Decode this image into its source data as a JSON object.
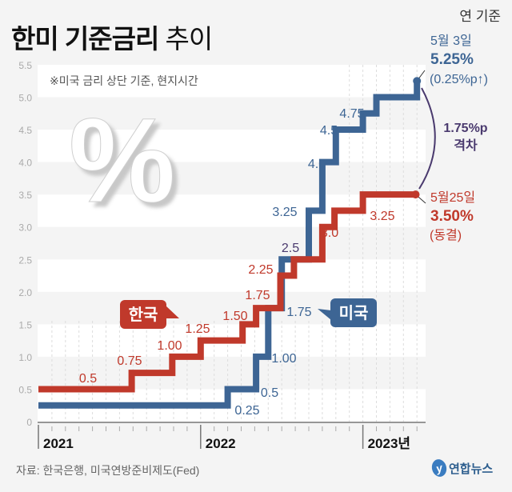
{
  "header": {
    "title_bold": "한미 기준금리",
    "title_light": "추이",
    "unit": "연 기준"
  },
  "footer": {
    "source": "자료: 한국은행, 미국연방준비제도(Fed)",
    "logo": "연합뉴스"
  },
  "colors": {
    "korea": "#c0392b",
    "us": "#3d6594",
    "gap": "#4a3a6e",
    "background": "#f4f4f4"
  },
  "chart_data": {
    "type": "line",
    "step": true,
    "title": "한미 기준금리 추이",
    "note": "※미국 금리 상단 기준, 현지시간",
    "ylabel": "연 기준 (%)",
    "ylim": [
      0,
      5.5
    ],
    "yticks": [
      "0",
      "0.5",
      "1.0",
      "1.5",
      "2.0",
      "2.5",
      "3.0",
      "3.5",
      "4.0",
      "4.5",
      "5.0",
      "5.5"
    ],
    "x_unit": "months since Jan 2021",
    "xlim": [
      0,
      28.7
    ],
    "xticks": [
      {
        "m": 0,
        "label": "2021"
      },
      {
        "m": 12,
        "label": "2022"
      },
      {
        "m": 24,
        "label": "2023년"
      }
    ],
    "series": [
      {
        "name": "한국",
        "points": [
          [
            0,
            0.5
          ],
          [
            6.9,
            0.75
          ],
          [
            9.9,
            1.0
          ],
          [
            12,
            1.25
          ],
          [
            15.1,
            1.5
          ],
          [
            16.1,
            1.75
          ],
          [
            17.9,
            2.25
          ],
          [
            18.9,
            2.5
          ],
          [
            21,
            3.0
          ],
          [
            21.9,
            3.25
          ],
          [
            24,
            3.5
          ],
          [
            27.9,
            3.5
          ]
        ],
        "labels": [
          "0.5",
          "0.75",
          "1.00",
          "1.25",
          "1.50",
          "1.75",
          "2.25",
          "3.0",
          "3.25"
        ]
      },
      {
        "name": "미국",
        "points": [
          [
            0,
            0.25
          ],
          [
            14,
            0.5
          ],
          [
            16.1,
            1.0
          ],
          [
            17,
            1.75
          ],
          [
            18,
            2.5
          ],
          [
            20,
            3.25
          ],
          [
            21,
            4.0
          ],
          [
            22,
            4.5
          ],
          [
            24,
            4.75
          ],
          [
            25,
            5.0
          ],
          [
            28,
            5.25
          ]
        ],
        "labels": [
          "0.25",
          "0.5",
          "1.00",
          "1.75",
          "2.5",
          "3.25",
          "4.0",
          "4.5",
          "4.75"
        ]
      }
    ],
    "annotations": {
      "us_end": {
        "date": "5월 3일",
        "value": "5.25%",
        "change": "(0.25%p↑)"
      },
      "korea_end": {
        "date": "5월25일",
        "value": "3.50%",
        "change": "(동결)"
      },
      "gap": {
        "value": "1.75%p",
        "label": "격차"
      }
    }
  }
}
